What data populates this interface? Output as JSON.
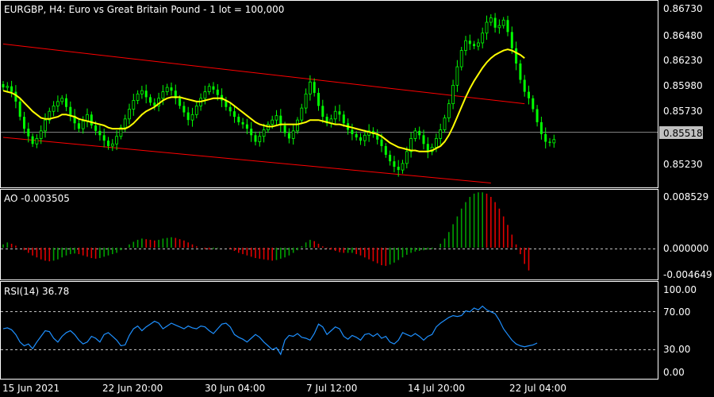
{
  "chart_data": [
    {
      "type": "candlestick",
      "title": "EURGBP, H4:  Euro vs Great Britain Pound - 1 lot = 100,000",
      "ylim": [
        0.8508,
        0.8679
      ],
      "y_ticks": [
        "0.86730",
        "0.86480",
        "0.86230",
        "0.85980",
        "0.85730",
        "0.85230"
      ],
      "current_price_label": "0.85518",
      "current_price": 0.85518,
      "x_ticks": [
        "15 Jun 2021",
        "22 Jun 20:00",
        "30 Jun 04:00",
        "7 Jul 12:00",
        "14 Jul 20:00",
        "22 Jul 04:00"
      ],
      "bull_color": "#00ff00",
      "bear_color": "#00ff00",
      "ma_color": "#ffff00",
      "channel_color": "#ff0000",
      "grid": false,
      "close_series": [
        0.86,
        0.8601,
        0.8596,
        0.8587,
        0.8573,
        0.8562,
        0.8555,
        0.8548,
        0.8553,
        0.856,
        0.857,
        0.8578,
        0.8583,
        0.8587,
        0.859,
        0.8582,
        0.8574,
        0.8567,
        0.8562,
        0.8569,
        0.8575,
        0.8565,
        0.856,
        0.8556,
        0.8551,
        0.8546,
        0.8548,
        0.8555,
        0.8563,
        0.8571,
        0.858,
        0.8588,
        0.8594,
        0.8597,
        0.8591,
        0.8586,
        0.8583,
        0.859,
        0.8596,
        0.86,
        0.8597,
        0.859,
        0.8583,
        0.8577,
        0.857,
        0.8575,
        0.8583,
        0.859,
        0.8596,
        0.8601,
        0.8598,
        0.8593,
        0.8588,
        0.8582,
        0.8578,
        0.8573,
        0.8568,
        0.8566,
        0.8562,
        0.8556,
        0.855,
        0.8555,
        0.8561,
        0.8566,
        0.857,
        0.8574,
        0.8565,
        0.8558,
        0.8553,
        0.856,
        0.857,
        0.8581,
        0.8594,
        0.8605,
        0.8595,
        0.8583,
        0.8573,
        0.8567,
        0.8571,
        0.8578,
        0.8575,
        0.8567,
        0.8561,
        0.8557,
        0.8554,
        0.8551,
        0.8556,
        0.856,
        0.8557,
        0.8552,
        0.8546,
        0.8538,
        0.8532,
        0.8527,
        0.8524,
        0.853,
        0.8541,
        0.8553,
        0.856,
        0.8556,
        0.8548,
        0.8541,
        0.8545,
        0.8553,
        0.8561,
        0.8572,
        0.8585,
        0.8602,
        0.8619,
        0.8634,
        0.8643,
        0.864,
        0.8638,
        0.8641,
        0.865,
        0.866,
        0.8664,
        0.8655,
        0.8657,
        0.8662,
        0.8651,
        0.8636,
        0.8622,
        0.8607,
        0.8596,
        0.859,
        0.858,
        0.8568,
        0.8557,
        0.855,
        0.8549,
        0.8552
      ],
      "ma_series": [
        0.8597,
        0.8596,
        0.8595,
        0.8593,
        0.859,
        0.8586,
        0.8582,
        0.8578,
        0.8575,
        0.8572,
        0.8571,
        0.8571,
        0.8572,
        0.8573,
        0.8575,
        0.8575,
        0.8574,
        0.8573,
        0.8571,
        0.857,
        0.8569,
        0.8568,
        0.8567,
        0.8566,
        0.8565,
        0.8563,
        0.8562,
        0.8562,
        0.8562,
        0.8562,
        0.8564,
        0.8567,
        0.8571,
        0.8575,
        0.8578,
        0.858,
        0.8582,
        0.8585,
        0.8588,
        0.859,
        0.8591,
        0.8591,
        0.8591,
        0.859,
        0.8589,
        0.8588,
        0.8587,
        0.8587,
        0.8588,
        0.8589,
        0.859,
        0.859,
        0.859,
        0.8588,
        0.8586,
        0.8583,
        0.858,
        0.8577,
        0.8574,
        0.8571,
        0.8568,
        0.8566,
        0.8565,
        0.8564,
        0.8564,
        0.8565,
        0.8566,
        0.8566,
        0.8566,
        0.8566,
        0.8566,
        0.8567,
        0.8568,
        0.857,
        0.857,
        0.857,
        0.8569,
        0.8568,
        0.8567,
        0.8566,
        0.8566,
        0.8565,
        0.8564,
        0.8563,
        0.8562,
        0.8561,
        0.856,
        0.8559,
        0.8558,
        0.8557,
        0.8555,
        0.8552,
        0.8549,
        0.8547,
        0.8545,
        0.8544,
        0.8543,
        0.8542,
        0.8542,
        0.8541,
        0.8541,
        0.8541,
        0.8542,
        0.8544,
        0.8546,
        0.855,
        0.8556,
        0.8564,
        0.8573,
        0.8582,
        0.8591,
        0.8599,
        0.8606,
        0.8612,
        0.8618,
        0.8623,
        0.8627,
        0.863,
        0.8632,
        0.8634,
        0.8635,
        0.8634,
        0.8632,
        0.863,
        0.8627
      ],
      "channel_upper": [
        [
          0,
          0.864
        ],
        [
          124,
          0.8585
        ]
      ],
      "channel_lower": [
        [
          0,
          0.8554
        ],
        [
          116,
          0.8512
        ]
      ]
    },
    {
      "type": "bar",
      "title": "AO -0.003505",
      "ylim": [
        -0.004649,
        0.008529
      ],
      "y_ticks": [
        "0.008529",
        "0.000000",
        "-0.004649"
      ],
      "up_color": "#00a000",
      "down_color": "#e00000",
      "zero_line": true,
      "values": [
        0.0005,
        0.0008,
        0.0006,
        0.0003,
        0.0,
        -0.0004,
        -0.0008,
        -0.0012,
        -0.0015,
        -0.0018,
        -0.002,
        -0.0021,
        -0.002,
        -0.0018,
        -0.0015,
        -0.0012,
        -0.001,
        -0.0009,
        -0.001,
        -0.0012,
        -0.0014,
        -0.0016,
        -0.0017,
        -0.0016,
        -0.0014,
        -0.0012,
        -0.001,
        -0.0008,
        -0.0004,
        0.0,
        0.0005,
        0.0009,
        0.0012,
        0.0014,
        0.0013,
        0.0012,
        0.0011,
        0.0012,
        0.0014,
        0.0015,
        0.0016,
        0.0015,
        0.0013,
        0.0011,
        0.0008,
        0.0005,
        0.0002,
        0.0,
        -0.0002,
        -0.0003,
        -0.0002,
        -0.0001,
        0.0,
        0.0,
        -0.0002,
        -0.0005,
        -0.0008,
        -0.001,
        -0.0012,
        -0.0014,
        -0.0016,
        -0.0017,
        -0.0018,
        -0.0019,
        -0.002,
        -0.0019,
        -0.0017,
        -0.0015,
        -0.0012,
        -0.0008,
        -0.0004,
        0.0002,
        0.0008,
        0.0012,
        0.001,
        0.0006,
        0.0002,
        -0.0001,
        -0.0003,
        -0.0005,
        -0.0007,
        -0.0008,
        -0.0008,
        -0.0008,
        -0.001,
        -0.0012,
        -0.0015,
        -0.0018,
        -0.0021,
        -0.0024,
        -0.0027,
        -0.0028,
        -0.0026,
        -0.0023,
        -0.0019,
        -0.0015,
        -0.0011,
        -0.0008,
        -0.0006,
        -0.0005,
        -0.0004,
        -0.0003,
        -0.0002,
        0.0,
        0.0006,
        0.0014,
        0.0024,
        0.0036,
        0.0048,
        0.006,
        0.007,
        0.0078,
        0.0083,
        0.0085,
        0.0085,
        0.0083,
        0.0078,
        0.007,
        0.006,
        0.0048,
        0.0035,
        0.002,
        0.0005,
        -0.001,
        -0.0025,
        -0.0035
      ]
    },
    {
      "type": "line",
      "title": "RSI(14) 36.78",
      "ylim": [
        0,
        100
      ],
      "y_ticks": [
        100,
        70,
        30,
        0
      ],
      "y_tick_labels": [
        "100.00",
        "70.00",
        "30.00",
        "0.00"
      ],
      "levels": [
        70,
        30
      ],
      "series": [
        {
          "color": "#1e90ff",
          "values": [
            52,
            53,
            51,
            46,
            38,
            34,
            36,
            31,
            38,
            44,
            50,
            49,
            42,
            38,
            44,
            48,
            50,
            46,
            40,
            36,
            38,
            44,
            42,
            38,
            46,
            48,
            44,
            40,
            34,
            35,
            45,
            52,
            55,
            50,
            54,
            57,
            60,
            58,
            52,
            55,
            58,
            56,
            54,
            52,
            55,
            53,
            52,
            55,
            54,
            50,
            47,
            52,
            57,
            58,
            54,
            46,
            43,
            41,
            38,
            42,
            46,
            43,
            38,
            34,
            30,
            32,
            25,
            40,
            45,
            44,
            47,
            43,
            42,
            40,
            47,
            57,
            54,
            46,
            50,
            54,
            52,
            44,
            41,
            45,
            43,
            40,
            46,
            47,
            44,
            47,
            42,
            44,
            38,
            36,
            40,
            48,
            46,
            44,
            47,
            44,
            40,
            44,
            46,
            54,
            58,
            61,
            64,
            66,
            65,
            66,
            71,
            70,
            74,
            72,
            76,
            72,
            70,
            68,
            61,
            52,
            46,
            40,
            36,
            34,
            33,
            34,
            35,
            37
          ]
        }
      ]
    }
  ]
}
